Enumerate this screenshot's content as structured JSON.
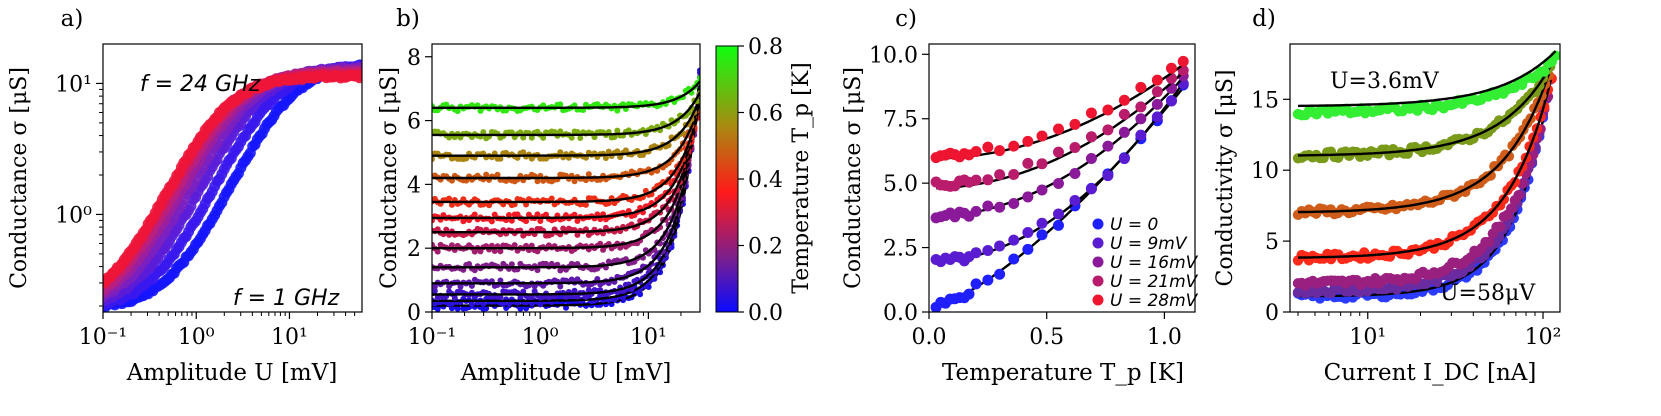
{
  "chart_data": [
    {
      "panel_label": "a)",
      "type": "scatter",
      "xscale": "log",
      "yscale": "log",
      "xlim": [
        0.1,
        60
      ],
      "ylim": [
        0.18,
        20
      ],
      "xticks": [
        {
          "v": 0.1,
          "label": "10⁻¹"
        },
        {
          "v": 1,
          "label": "10⁰"
        },
        {
          "v": 10,
          "label": "10¹"
        }
      ],
      "yticks": [
        {
          "v": 1,
          "label": "10⁰"
        },
        {
          "v": 10,
          "label": "10¹"
        }
      ],
      "xlabel": "Amplitude U [mV]",
      "ylabel": "Conductance σ [μS]",
      "annotations": [
        {
          "text": "f = 24 GHz",
          "color": "#e0103a"
        },
        {
          "text": "f = 1 GHz",
          "color": "#1f1fff"
        }
      ],
      "series": [
        {
          "name": "1 GHz",
          "color": "#1515ff",
          "x0": 9.0
        },
        {
          "name": "",
          "color": "#3a18ee",
          "x0": 6.0
        },
        {
          "name": "",
          "color": "#5a1cd8",
          "x0": 4.2
        },
        {
          "name": "",
          "color": "#7a1fc0",
          "x0": 3.2
        },
        {
          "name": "",
          "color": "#9a1fa0",
          "x0": 2.6
        },
        {
          "name": "",
          "color": "#b81f80",
          "x0": 2.2
        },
        {
          "name": "",
          "color": "#d51a5a",
          "x0": 1.9
        },
        {
          "name": "24 GHz",
          "color": "#ee1538",
          "x0": 1.75
        }
      ]
    },
    {
      "panel_label": "b)",
      "type": "scatter",
      "xscale": "log",
      "yscale": "linear",
      "xlim": [
        0.1,
        30
      ],
      "ylim": [
        0,
        8.4
      ],
      "xticks": [
        {
          "v": 0.1,
          "label": "10⁻¹"
        },
        {
          "v": 1,
          "label": "10⁰"
        },
        {
          "v": 10,
          "label": "10¹"
        }
      ],
      "yticks": [
        0,
        2,
        4,
        6,
        8
      ],
      "xlabel": "Amplitude U [mV]",
      "ylabel": "Conductance σ [μS]",
      "colorbar": {
        "label": "Temperature T_p [K]",
        "ticks": [
          0.0,
          0.2,
          0.4,
          0.6,
          0.8
        ],
        "range": [
          0,
          0.8
        ]
      },
      "series": [
        {
          "T": 0.02,
          "base": 0.2
        },
        {
          "T": 0.05,
          "base": 0.35
        },
        {
          "T": 0.08,
          "base": 0.55
        },
        {
          "T": 0.12,
          "base": 0.9
        },
        {
          "T": 0.17,
          "base": 1.4
        },
        {
          "T": 0.22,
          "base": 2.0
        },
        {
          "T": 0.28,
          "base": 2.5
        },
        {
          "T": 0.34,
          "base": 2.95
        },
        {
          "T": 0.4,
          "base": 3.45
        },
        {
          "T": 0.47,
          "base": 4.2
        },
        {
          "T": 0.55,
          "base": 4.9
        },
        {
          "T": 0.63,
          "base": 5.55
        },
        {
          "T": 0.75,
          "base": 6.4
        }
      ]
    },
    {
      "panel_label": "c)",
      "type": "scatter",
      "xscale": "linear",
      "yscale": "linear",
      "xlim": [
        0,
        1.13
      ],
      "ylim": [
        0,
        10.4
      ],
      "xticks": [
        {
          "v": 0,
          "label": "0.0"
        },
        {
          "v": 0.5,
          "label": "0.5"
        },
        {
          "v": 1,
          "label": "1.0"
        }
      ],
      "yticks": [
        {
          "v": 0,
          "label": "0.0"
        },
        {
          "v": 2.5,
          "label": "2.5"
        },
        {
          "v": 5,
          "label": "5.0"
        },
        {
          "v": 7.5,
          "label": "7.5"
        },
        {
          "v": 10,
          "label": "10.0"
        }
      ],
      "xlabel": "Temperature T_p [K]",
      "ylabel": "Conductance σ [μS]",
      "legend_position": "lower-right",
      "series": [
        {
          "name": "U = 0",
          "color": "#1f1fff",
          "base": 0.15
        },
        {
          "name": "U = 9mV",
          "color": "#5a1cd0",
          "base": 1.95
        },
        {
          "name": "U = 16mV",
          "color": "#8a1a9a",
          "base": 3.7
        },
        {
          "name": "U = 21mV",
          "color": "#b81c6a",
          "base": 4.8
        },
        {
          "name": "U = 28mV",
          "color": "#ee1530",
          "base": 5.95
        }
      ]
    },
    {
      "panel_label": "d)",
      "type": "scatter",
      "xscale": "log",
      "yscale": "linear",
      "xlim": [
        3.6,
        125
      ],
      "ylim": [
        0,
        18.9
      ],
      "xticks": [
        {
          "v": 10,
          "label": "10¹"
        },
        {
          "v": 100,
          "label": "10²"
        }
      ],
      "yticks": [
        0,
        5,
        10,
        15
      ],
      "xlabel": "Current I_DC [nA]",
      "ylabel": "Conductivity σ [μS]",
      "annotations": [
        {
          "text": "U=3.6mV",
          "color": "#2ad82a"
        },
        {
          "text": "U=58μV",
          "color": "#1f1fff"
        }
      ],
      "series": [
        {
          "name": "U=58μV",
          "color": "#2b3bff",
          "base": 1.1
        },
        {
          "name": "",
          "color": "#6a2aa0",
          "base": 1.5
        },
        {
          "name": "",
          "color": "#9a2080",
          "base": 2.0
        },
        {
          "name": "",
          "color": "#ff2a1a",
          "base": 3.8
        },
        {
          "name": "",
          "color": "#d05c1a",
          "base": 7.0
        },
        {
          "name": "",
          "color": "#7a9a1a",
          "base": 11.0
        },
        {
          "name": "U=3.6mV",
          "color": "#33ee33",
          "base": 14.5
        }
      ]
    }
  ]
}
